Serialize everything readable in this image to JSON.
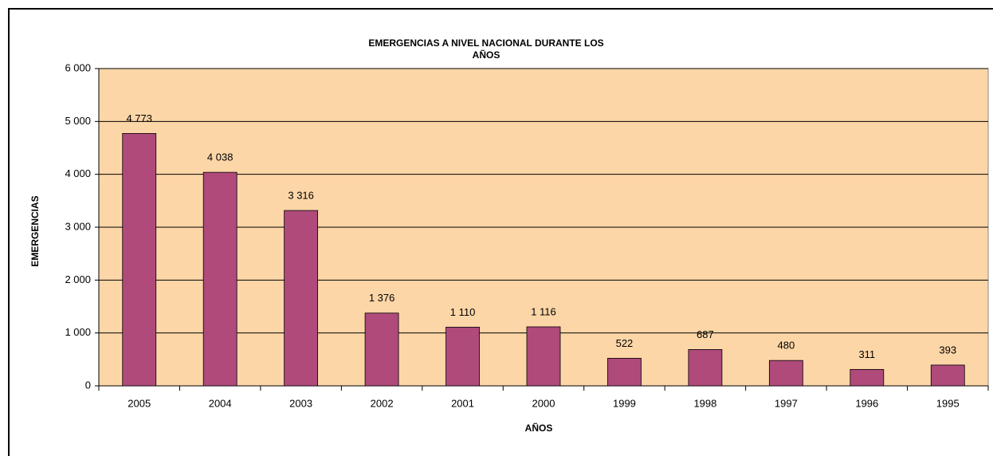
{
  "chart_data": {
    "type": "bar",
    "title": [
      "EMERGENCIAS A NIVEL NACIONAL DURANTE LOS",
      "AÑOS"
    ],
    "x_label": "AÑOS",
    "y_label": "EMERGENCIAS",
    "categories": [
      "2005",
      "2004",
      "2003",
      "2002",
      "2001",
      "2000",
      "1999",
      "1998",
      "1997",
      "1996",
      "1995"
    ],
    "values": [
      4773,
      4038,
      3316,
      1376,
      1110,
      1116,
      522,
      687,
      480,
      311,
      393
    ],
    "value_labels": [
      "4 773",
      "4 038",
      "3 316",
      "1 376",
      "1 110",
      "1 116",
      "522",
      "687",
      "480",
      "311",
      "393"
    ],
    "color": "#af4a7b",
    "background": "#fdd6a7",
    "ylim": [
      0,
      6000
    ],
    "yticks": [
      0,
      {
        "value": 1000,
        "label": "1 000"
      },
      {
        "value": 2000,
        "label": "2 000"
      },
      {
        "value": 3000,
        "label": "3 000"
      },
      {
        "value": 4000,
        "label": "4 000"
      },
      {
        "value": 5000,
        "label": "5 000"
      },
      {
        "value": 6000,
        "label": "6 000"
      }
    ],
    "grid": true
  }
}
